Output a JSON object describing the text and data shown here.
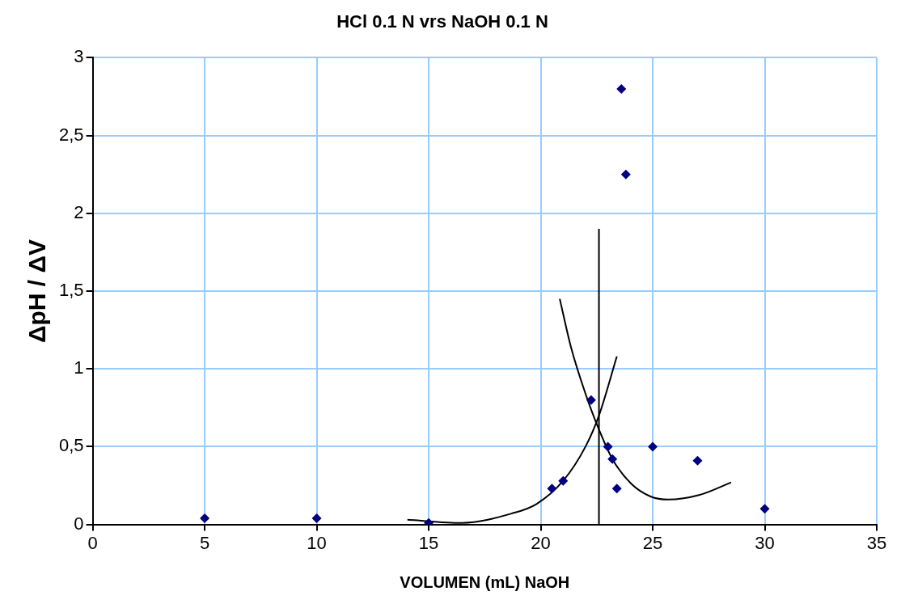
{
  "chart_data": {
    "type": "scatter",
    "title": "HCl 0.1 N vrs NaOH 0.1 N",
    "xlabel": "VOLUMEN (mL) NaOH",
    "ylabel": "ΔpH / ΔV",
    "xlim": [
      0,
      35
    ],
    "xticks": [
      0,
      5,
      10,
      15,
      20,
      25,
      30,
      35
    ],
    "ylim": [
      0,
      3
    ],
    "yticks": [
      {
        "value": 0,
        "label": "0"
      },
      {
        "value": 0.5,
        "label": "0,5"
      },
      {
        "value": 1,
        "label": "1"
      },
      {
        "value": 1.5,
        "label": "1,5"
      },
      {
        "value": 2,
        "label": "2"
      },
      {
        "value": 2.5,
        "label": "2,5"
      },
      {
        "value": 3,
        "label": "3"
      }
    ],
    "grid": true,
    "legend": false,
    "series": [
      {
        "color": "#000080",
        "marker": "diamond",
        "x": [
          5,
          10,
          15,
          20.5,
          21,
          22.25,
          23,
          23.2,
          23.4,
          23.6,
          23.8,
          25,
          27,
          30
        ],
        "values": [
          0.04,
          0.04,
          0.01,
          0.23,
          0.28,
          0.8,
          0.5,
          0.42,
          0.23,
          2.8,
          2.25,
          0.5,
          0.41,
          0.1
        ]
      },
      {
        "type": "line",
        "color": "#000000",
        "marker": "none",
        "x": [
          14.05,
          16.5,
          18.7,
          19.8,
          21,
          22,
          22.6,
          23.4
        ],
        "values": [
          0.03,
          0.01,
          0.07,
          0.13,
          0.28,
          0.5,
          0.7,
          1.08
        ]
      },
      {
        "type": "line",
        "color": "#000000",
        "marker": "none",
        "x": [
          20.85,
          21.35,
          22,
          22.6,
          23.2,
          24.05,
          24.9,
          25.7,
          27.1,
          28.5
        ],
        "values": [
          1.45,
          1.14,
          0.84,
          0.61,
          0.42,
          0.26,
          0.18,
          0.16,
          0.19,
          0.27
        ]
      },
      {
        "type": "line",
        "color": "#000000",
        "marker": "none",
        "x": [
          22.6,
          22.6
        ],
        "values": [
          0,
          1.9
        ]
      }
    ]
  }
}
